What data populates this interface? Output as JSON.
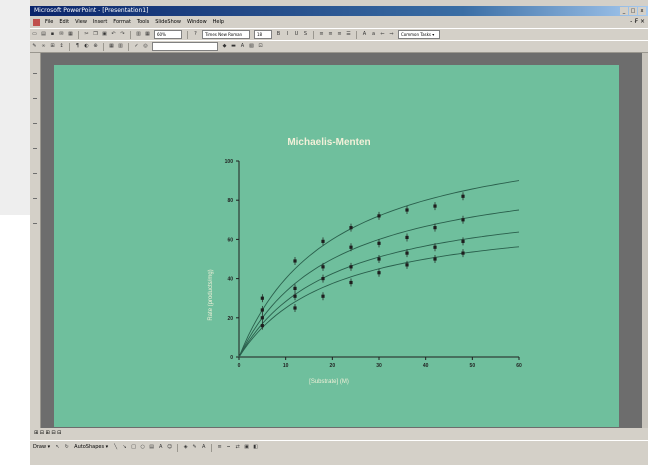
{
  "window": {
    "title": "Microsoft PowerPoint - [Presentation1]",
    "minimize": "_",
    "maximize": "□",
    "close": "x"
  },
  "menu": [
    "File",
    "Edit",
    "View",
    "Insert",
    "Format",
    "Tools",
    "SlideShow",
    "Window",
    "Help"
  ],
  "menu_close_glyph": "- ₣ ×",
  "toolbar": {
    "zoom": "60%",
    "font_name": "Times New Roman",
    "font_size": "18",
    "common_tasks": "Common Tasks ▾"
  },
  "status": {
    "slide_indicator": "⊞ ⊟ ⊞ ⊟ ⊟"
  },
  "drawing": {
    "draw_label": "Draw ▾",
    "autoshapes_label": "AutoShapes ▾"
  },
  "slide": {
    "background": "#6fbf9d"
  },
  "chart_data": {
    "type": "scatter",
    "title": "Michaelis-Menten",
    "xlabel": "[Substrate] (M)",
    "ylabel": "Rate (products/mg)",
    "xlim": [
      0,
      60
    ],
    "ylim": [
      0,
      100
    ],
    "xticks": [
      0,
      10,
      20,
      30,
      40,
      50,
      60
    ],
    "yticks": [
      0,
      20,
      40,
      60,
      80,
      100
    ],
    "tick_labels_x": [
      "0",
      "10",
      "20",
      "30",
      "40",
      "50",
      "60"
    ],
    "tick_labels_y": [
      "0",
      "20",
      "40",
      "60",
      "80",
      "100"
    ],
    "x": [
      5,
      12,
      18,
      24,
      30,
      36,
      42,
      48
    ],
    "series": [
      {
        "values": [
          30,
          49,
          59,
          66,
          72,
          75,
          77,
          82
        ],
        "vmax": 120,
        "km": 20
      },
      {
        "values": [
          24,
          35,
          46,
          56,
          58,
          61,
          66,
          70
        ],
        "vmax": 100,
        "km": 20
      },
      {
        "values": [
          20,
          31,
          40,
          46,
          50,
          53,
          56,
          59
        ],
        "vmax": 85,
        "km": 20
      },
      {
        "values": [
          16,
          25,
          31,
          38,
          43,
          47,
          50,
          53
        ],
        "vmax": 75,
        "km": 20
      }
    ],
    "grid": false,
    "legend": "none",
    "colors": {
      "marks": "#1f1f1f",
      "text": "#f2f0d9"
    }
  }
}
